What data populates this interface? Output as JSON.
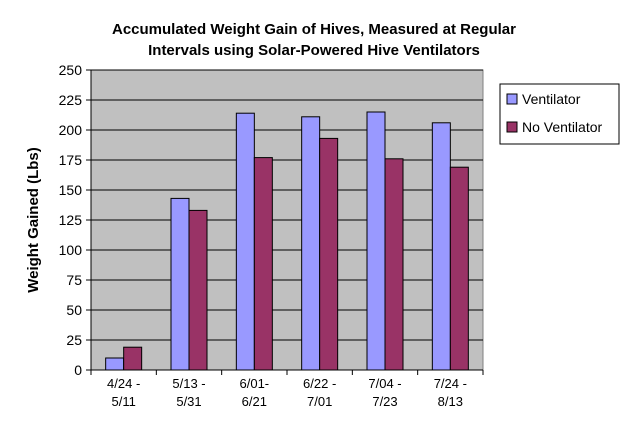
{
  "chart_data": {
    "type": "bar",
    "title": "Accumulated Weight Gain of Hives, Measured at Regular Intervals using Solar-Powered Hive Ventilators",
    "title_lines": [
      "Accumulated Weight Gain of Hives, Measured at Regular",
      "Intervals using Solar-Powered Hive Ventilators"
    ],
    "xlabel": "",
    "ylabel": "Weight Gained (Lbs)",
    "ylim": [
      0,
      250
    ],
    "yticks": [
      0,
      25,
      50,
      75,
      100,
      125,
      150,
      175,
      200,
      225,
      250
    ],
    "grid": true,
    "legend_position": "right",
    "categories": [
      [
        "4/24 -",
        "5/11"
      ],
      [
        "5/13 -",
        "5/31"
      ],
      [
        "6/01-",
        "6/21"
      ],
      [
        "6/22 -",
        "7/01"
      ],
      [
        "7/04 -",
        "7/23"
      ],
      [
        "7/24 -",
        "8/13"
      ]
    ],
    "series": [
      {
        "name": "Ventilator",
        "color": "#9999ff",
        "values": [
          10,
          143,
          214,
          211,
          215,
          206
        ]
      },
      {
        "name": "No Ventilator",
        "color": "#993366",
        "values": [
          19,
          133,
          177,
          193,
          176,
          169
        ]
      }
    ],
    "plot_background": "#c0c0c0"
  }
}
